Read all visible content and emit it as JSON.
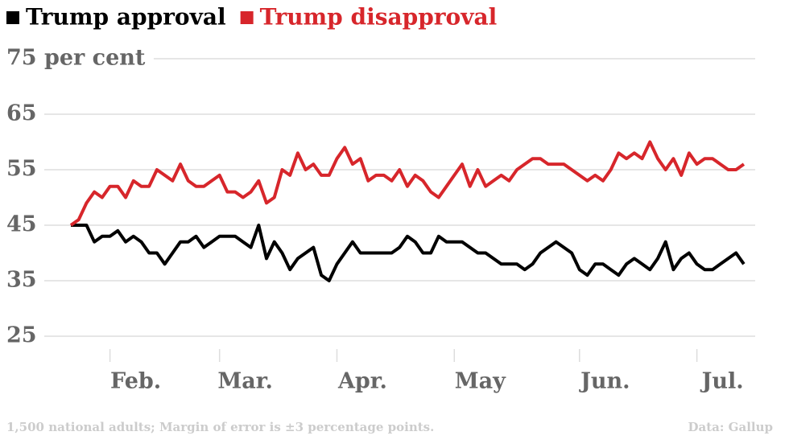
{
  "chart_data": {
    "type": "line",
    "categories": [
      null,
      null,
      null,
      null,
      null,
      "Feb.",
      null,
      null,
      null,
      null,
      null,
      null,
      null,
      null,
      null,
      null,
      null,
      null,
      null,
      "Mar.",
      null,
      null,
      null,
      null,
      null,
      null,
      null,
      null,
      null,
      null,
      null,
      null,
      null,
      null,
      "Apr.",
      null,
      null,
      null,
      null,
      null,
      null,
      null,
      null,
      null,
      null,
      null,
      null,
      null,
      null,
      "May",
      null,
      null,
      null,
      null,
      null,
      null,
      null,
      null,
      null,
      null,
      null,
      null,
      null,
      null,
      null,
      "Jun.",
      null,
      null,
      null,
      null,
      null,
      null,
      null,
      null,
      null,
      null,
      null,
      null,
      null,
      null,
      "Jul.",
      null,
      null,
      null,
      null,
      null,
      null
    ],
    "series": [
      {
        "name": "Trump approval",
        "color": "#000000",
        "values": [
          45,
          45,
          45,
          42,
          43,
          43,
          44,
          42,
          43,
          42,
          40,
          40,
          38,
          40,
          42,
          42,
          43,
          41,
          42,
          43,
          43,
          43,
          42,
          41,
          45,
          39,
          42,
          40,
          37,
          39,
          40,
          41,
          36,
          35,
          38,
          40,
          42,
          40,
          40,
          40,
          40,
          40,
          41,
          43,
          42,
          40,
          40,
          43,
          42,
          42,
          42,
          41,
          40,
          40,
          39,
          38,
          38,
          38,
          37,
          38,
          40,
          41,
          42,
          41,
          40,
          37,
          36,
          38,
          38,
          37,
          36,
          38,
          39,
          38,
          37,
          39,
          42,
          37,
          39,
          40,
          38,
          37,
          37,
          38,
          39,
          40,
          38
        ]
      },
      {
        "name": "Trump disapproval",
        "color": "#d7262b",
        "values": [
          45,
          46,
          49,
          51,
          50,
          52,
          52,
          50,
          53,
          52,
          52,
          55,
          54,
          53,
          56,
          53,
          52,
          52,
          53,
          54,
          51,
          51,
          50,
          51,
          53,
          49,
          50,
          55,
          54,
          58,
          55,
          56,
          54,
          54,
          57,
          59,
          56,
          57,
          53,
          54,
          54,
          53,
          55,
          52,
          54,
          53,
          51,
          50,
          52,
          54,
          56,
          52,
          55,
          52,
          53,
          54,
          53,
          55,
          56,
          57,
          57,
          56,
          56,
          56,
          55,
          54,
          53,
          54,
          53,
          55,
          58,
          57,
          58,
          57,
          60,
          57,
          55,
          57,
          54,
          58,
          56,
          57,
          57,
          56,
          55,
          55,
          56
        ]
      }
    ],
    "ylim": [
      25,
      75
    ],
    "yticks": [
      25,
      35,
      45,
      55,
      65,
      {
        "value": 75,
        "label": "75 per cent"
      }
    ],
    "grid": true,
    "note": "1,500 national adults; Margin of error is ±3 percentage points.",
    "source": "Data: Gallup"
  }
}
